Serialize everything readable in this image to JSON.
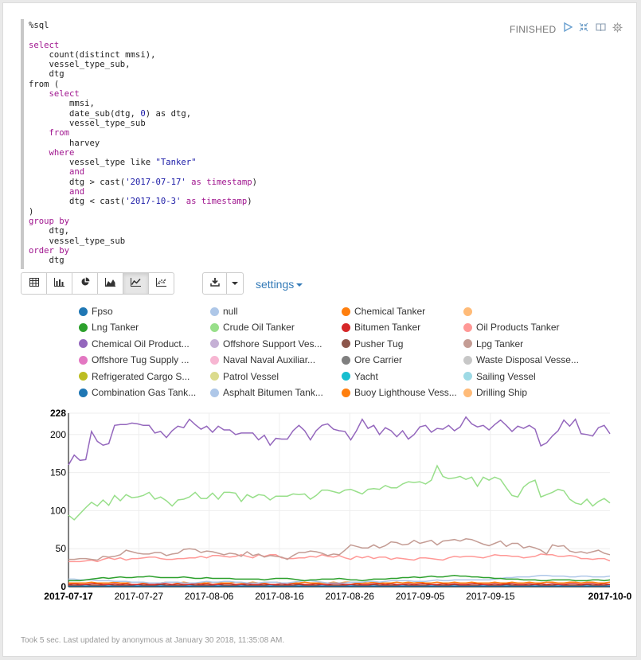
{
  "editor": {
    "lines": [
      "%sql",
      "",
      "select",
      "    count(distinct mmsi),",
      "    vessel_type_sub,",
      "    dtg",
      "from (",
      "    select",
      "        mmsi,",
      "        date_sub(dtg, 0) as dtg,",
      "        vessel_type_sub",
      "    from",
      "        harvey",
      "    where",
      "        vessel_type like \"Tanker\"",
      "        and",
      "        dtg > cast('2017-07-17' as timestamp)",
      "        and",
      "        dtg < cast('2017-10-3' as timestamp)",
      ")",
      "group by",
      "    dtg,",
      "    vessel_type_sub",
      "order by",
      "    dtg"
    ]
  },
  "status": "FINISHED",
  "icons": {
    "run": "play-icon",
    "collapse": "compress-icon",
    "book": "book-icon",
    "settings": "gear-icon",
    "download": "download-icon"
  },
  "toolbar": {
    "buttons": [
      "table-icon",
      "bar-chart-icon",
      "pie-chart-icon",
      "area-chart-icon",
      "line-chart-icon",
      "scatter-chart-icon"
    ],
    "active": "line-chart-icon"
  },
  "settings_label": "settings",
  "footer": "Took 5 sec. Last updated by anonymous at January 30 2018, 11:35:08 AM.",
  "chart_data": {
    "type": "line",
    "legend": [
      {
        "name": "Fpso",
        "color": "#1f77b4"
      },
      {
        "name": "null",
        "color": "#aec7e8"
      },
      {
        "name": "Chemical Tanker",
        "color": "#ff7f0e"
      },
      {
        "name": "",
        "color": "#ffbb78"
      },
      {
        "name": "Lng Tanker",
        "color": "#2ca02c"
      },
      {
        "name": "Crude Oil Tanker",
        "color": "#98df8a"
      },
      {
        "name": "Bitumen Tanker",
        "color": "#d62728"
      },
      {
        "name": "Oil Products Tanker",
        "color": "#ff9896"
      },
      {
        "name": "Chemical Oil Product...",
        "color": "#9467bd"
      },
      {
        "name": "Offshore Support Ves...",
        "color": "#c5b0d5"
      },
      {
        "name": "Pusher Tug",
        "color": "#8c564b"
      },
      {
        "name": "Lpg Tanker",
        "color": "#c49c94"
      },
      {
        "name": "Offshore Tug Supply ...",
        "color": "#e377c2"
      },
      {
        "name": "Naval Naval Auxiliar...",
        "color": "#f7b6d2"
      },
      {
        "name": "Ore Carrier",
        "color": "#7f7f7f"
      },
      {
        "name": "Waste Disposal Vesse...",
        "color": "#c7c7c7"
      },
      {
        "name": "Refrigerated Cargo S...",
        "color": "#bcbd22"
      },
      {
        "name": "Patrol Vessel",
        "color": "#dbdb8d"
      },
      {
        "name": "Yacht",
        "color": "#17becf"
      },
      {
        "name": "Sailing Vessel",
        "color": "#9edae5"
      },
      {
        "name": "Combination Gas Tank...",
        "color": "#1f77b4"
      },
      {
        "name": "Asphalt Bitumen Tank...",
        "color": "#aec7e8"
      },
      {
        "name": "Buoy Lighthouse Vess...",
        "color": "#ff7f0e"
      },
      {
        "name": "Drilling Ship",
        "color": "#ffbb78"
      }
    ],
    "x_ticks": [
      "2017-07-17",
      "2017-07-27",
      "2017-08-06",
      "2017-08-16",
      "2017-08-26",
      "2017-09-05",
      "2017-09-15",
      "2017-10-0"
    ],
    "y_ticks": [
      0,
      50,
      100,
      150,
      200,
      228
    ],
    "ylim": [
      0,
      228
    ],
    "x_start": "2017-07-17",
    "x_end": "2017-10-02",
    "series": [
      {
        "name": "Chemical Oil Product...",
        "color": "#9467bd",
        "values": [
          160,
          173,
          166,
          167,
          204,
          191,
          186,
          188,
          212,
          213,
          213,
          215,
          214,
          212,
          212,
          202,
          204,
          196,
          205,
          211,
          209,
          220,
          213,
          207,
          211,
          203,
          211,
          206,
          206,
          200,
          202,
          202,
          202,
          193,
          199,
          186,
          195,
          194,
          194,
          205,
          212,
          205,
          193,
          205,
          212,
          214,
          207,
          205,
          204,
          193,
          205,
          220,
          208,
          212,
          200,
          209,
          205,
          197,
          205,
          194,
          200,
          210,
          212,
          203,
          208,
          207,
          212,
          205,
          210,
          223,
          214,
          210,
          212,
          206,
          213,
          219,
          212,
          204,
          211,
          208,
          212,
          207,
          185,
          189,
          198,
          205,
          219,
          211,
          220,
          201,
          200,
          198,
          209,
          212,
          201
        ]
      },
      {
        "name": "Crude Oil Tanker",
        "color": "#98df8a",
        "values": [
          94,
          88,
          96,
          104,
          111,
          106,
          114,
          107,
          120,
          113,
          121,
          117,
          118,
          120,
          124,
          115,
          118,
          113,
          106,
          114,
          115,
          118,
          124,
          116,
          116,
          123,
          115,
          124,
          124,
          123,
          112,
          121,
          117,
          121,
          120,
          114,
          119,
          119,
          119,
          122,
          121,
          122,
          115,
          120,
          127,
          127,
          125,
          123,
          127,
          128,
          125,
          122,
          128,
          129,
          128,
          133,
          130,
          130,
          135,
          138,
          137,
          138,
          135,
          140,
          159,
          145,
          142,
          143,
          145,
          141,
          144,
          132,
          144,
          140,
          144,
          141,
          130,
          120,
          118,
          131,
          137,
          140,
          118,
          121,
          124,
          128,
          126,
          115,
          110,
          108,
          115,
          106,
          112,
          116,
          110
        ]
      },
      {
        "name": "Lpg Tanker",
        "color": "#c49c94",
        "values": [
          36,
          36,
          37,
          37,
          36,
          35,
          40,
          39,
          40,
          42,
          48,
          46,
          44,
          43,
          43,
          45,
          45,
          41,
          43,
          44,
          49,
          50,
          49,
          45,
          47,
          46,
          44,
          42,
          44,
          43,
          40,
          46,
          41,
          43,
          39,
          41,
          40,
          39,
          36,
          41,
          45,
          45,
          47,
          46,
          44,
          41,
          43,
          42,
          48,
          55,
          53,
          51,
          51,
          55,
          51,
          54,
          59,
          58,
          55,
          56,
          61,
          57,
          59,
          61,
          55,
          60,
          61,
          62,
          60,
          63,
          62,
          59,
          56,
          54,
          57,
          60,
          53,
          57,
          57,
          51,
          53,
          51,
          48,
          43,
          55,
          53,
          54,
          47,
          45,
          46,
          44,
          46,
          48,
          44,
          42
        ]
      },
      {
        "name": "Oil Products Tanker",
        "color": "#ff9896",
        "values": [
          33,
          33,
          33,
          34,
          35,
          33,
          36,
          38,
          36,
          38,
          35,
          37,
          37,
          38,
          39,
          39,
          37,
          36,
          36,
          37,
          37,
          38,
          38,
          40,
          38,
          41,
          41,
          40,
          39,
          40,
          42,
          40,
          38,
          42,
          40,
          42,
          42,
          38,
          37,
          37,
          38,
          38,
          40,
          39,
          42,
          40,
          39,
          41,
          38,
          36,
          40,
          38,
          40,
          37,
          39,
          39,
          36,
          38,
          37,
          36,
          35,
          38,
          38,
          37,
          36,
          35,
          38,
          40,
          39,
          40,
          40,
          39,
          38,
          40,
          42,
          41,
          41,
          40,
          40,
          38,
          39,
          40,
          43,
          42,
          42,
          40,
          40,
          41,
          40,
          37,
          37,
          36,
          37,
          37,
          34
        ]
      },
      {
        "name": "Lng Tanker",
        "color": "#2ca02c",
        "values": [
          8,
          8,
          8,
          9,
          10,
          11,
          12,
          11,
          12,
          13,
          12,
          12,
          13,
          13,
          14,
          13,
          12,
          12,
          12,
          12,
          13,
          12,
          11,
          11,
          12,
          11,
          11,
          11,
          11,
          10,
          10,
          10,
          10,
          10,
          9,
          10,
          11,
          11,
          11,
          10,
          9,
          8,
          9,
          9,
          10,
          10,
          10,
          11,
          10,
          9,
          9,
          8,
          9,
          10,
          10,
          10,
          11,
          11,
          12,
          12,
          13,
          12,
          13,
          14,
          13,
          13,
          14,
          15,
          14,
          14,
          13,
          13,
          12,
          12,
          11,
          11,
          10,
          10,
          10,
          9,
          9,
          9,
          8,
          8,
          9,
          9,
          9,
          9,
          8,
          8,
          8,
          9,
          9,
          8,
          9
        ]
      },
      {
        "name": "null",
        "color": "#aec7e8",
        "values": [
          10,
          10,
          9,
          9,
          9,
          8,
          8,
          8,
          7,
          7,
          7,
          6,
          6,
          6,
          5,
          5,
          5,
          6,
          6,
          6,
          5,
          5,
          5,
          6,
          7,
          6,
          6,
          7,
          7,
          6,
          6,
          5,
          5,
          5,
          6,
          6,
          6,
          5,
          5,
          6,
          7,
          8,
          8,
          7,
          6,
          5,
          5,
          5,
          5,
          6,
          6,
          6,
          7,
          7,
          6,
          7,
          8,
          8,
          8,
          8,
          7,
          7,
          7,
          8,
          9,
          8,
          8,
          9,
          9,
          9,
          9,
          9,
          9,
          9,
          10,
          11,
          12,
          12,
          13,
          13,
          13,
          14,
          15,
          15,
          14,
          14,
          14,
          13,
          13,
          14,
          14,
          13,
          13,
          13,
          14
        ]
      },
      {
        "name": "Chemical Tanker",
        "color": "#ff7f0e",
        "values": [
          5,
          5,
          5,
          5,
          6,
          5,
          5,
          5,
          6,
          5,
          5,
          6,
          6,
          5,
          5,
          5,
          5,
          6,
          6,
          5,
          6,
          5,
          5,
          5,
          5,
          6,
          5,
          5,
          5,
          6,
          5,
          5,
          6,
          5,
          5,
          6,
          6,
          5,
          5,
          5,
          5,
          6,
          5,
          5,
          5,
          5,
          6,
          5,
          6,
          6,
          5,
          5,
          5,
          6,
          5,
          5,
          5,
          6,
          5,
          6,
          5,
          6,
          5,
          5,
          6,
          5,
          5,
          6,
          5,
          5,
          6,
          5,
          5,
          5,
          6,
          5,
          5,
          6,
          5,
          5,
          6,
          5,
          5,
          6,
          6,
          5,
          5,
          6,
          6,
          5,
          6,
          6,
          5,
          5,
          6
        ]
      },
      {
        "name": "Bitumen Tanker",
        "color": "#d62728",
        "values": [
          3,
          4,
          3,
          3,
          4,
          4,
          3,
          3,
          4,
          3,
          4,
          3,
          3,
          4,
          3,
          3,
          4,
          4,
          3,
          4,
          3,
          3,
          4,
          3,
          4,
          3,
          3,
          4,
          4,
          3,
          3,
          4,
          3,
          3,
          4,
          3,
          3,
          4,
          3,
          4,
          4,
          3,
          3,
          4,
          3,
          3,
          4,
          4,
          3,
          3,
          4,
          3,
          3,
          4,
          4,
          3,
          4,
          3,
          3,
          4,
          3,
          4,
          4,
          3,
          3,
          4,
          3,
          4,
          3,
          3,
          4,
          4,
          3,
          3,
          4,
          3,
          4,
          4,
          3,
          3,
          4,
          3,
          4,
          3,
          4,
          3,
          3,
          4,
          4,
          3,
          4,
          4,
          3,
          4,
          3
        ]
      },
      {
        "name": "Pusher Tug",
        "color": "#8c564b",
        "values": [
          2,
          2,
          2,
          3,
          2,
          2,
          2,
          3,
          2,
          2,
          2,
          2,
          3,
          2,
          2,
          2,
          3,
          2,
          2,
          2,
          2,
          3,
          2,
          2,
          2,
          2,
          3,
          2,
          2,
          2,
          3,
          2,
          2,
          2,
          2,
          3,
          2,
          2,
          2,
          2,
          3,
          2,
          2,
          2,
          3,
          2,
          2,
          2,
          2,
          3,
          2,
          2,
          2,
          3,
          2,
          2,
          2,
          2,
          3,
          2,
          2,
          2,
          2,
          3,
          2,
          2,
          2,
          3,
          2,
          2,
          2,
          2,
          3,
          2,
          2,
          2,
          3,
          2,
          2,
          2,
          2,
          3,
          2,
          2,
          2,
          3,
          2,
          2,
          2,
          2,
          3,
          2,
          2,
          2,
          3
        ]
      },
      {
        "name": "Fpso",
        "color": "#1f77b4",
        "values": [
          1,
          1,
          1,
          1,
          1,
          1,
          1,
          1,
          1,
          1,
          1,
          1,
          1,
          1,
          1,
          1,
          1,
          1,
          1,
          1,
          1,
          1,
          1,
          1,
          1,
          1,
          1,
          1,
          1,
          1,
          1,
          1,
          1,
          1,
          1,
          1,
          1,
          1,
          1,
          1,
          1,
          1,
          1,
          1,
          1,
          1,
          1,
          1,
          1,
          1,
          1,
          1,
          1,
          1,
          1,
          1,
          1,
          1,
          1,
          1,
          1,
          1,
          1,
          1,
          1,
          1,
          1,
          1,
          1,
          1,
          1,
          1,
          1,
          1,
          1,
          1,
          1,
          1,
          1,
          1,
          1,
          1,
          1,
          1,
          1,
          1,
          1,
          1,
          1,
          1,
          1,
          1,
          1,
          1,
          1
        ]
      }
    ]
  }
}
